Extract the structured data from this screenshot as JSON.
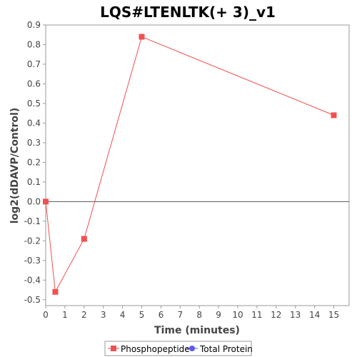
{
  "chart_data": {
    "type": "line",
    "title": "LQS#LTENLTK(+ 3)_v1",
    "xlabel": "Time (minutes)",
    "ylabel": "log2(dDAVP/Control)",
    "xlim": [
      0,
      15.8
    ],
    "ylim": [
      -0.53,
      0.9
    ],
    "xticks": [
      0,
      1,
      2,
      3,
      4,
      5,
      6,
      7,
      8,
      9,
      10,
      11,
      12,
      13,
      14,
      15
    ],
    "yticks": [
      0.9,
      0.8,
      0.7,
      0.6,
      0.5,
      0.4,
      0.3,
      0.2,
      0.1,
      0.0,
      -0.1,
      -0.2,
      -0.3,
      -0.4,
      -0.5
    ],
    "ytick_labels": [
      "0.9",
      "0.8",
      "0.7",
      "0.6",
      "0.5",
      "0.4",
      "0.3",
      "0.2",
      "0.1",
      "0.0",
      "-0.1",
      "-0.2",
      "-0.3",
      "-0.4",
      "-0.5"
    ],
    "zero_line": true,
    "grid": false,
    "legend_position": "bottom",
    "series": [
      {
        "name": "Phosphopeptide",
        "color": "#f05050",
        "marker": "square",
        "x": [
          0,
          0.5,
          2,
          5,
          15
        ],
        "y": [
          0.0,
          -0.46,
          -0.19,
          0.84,
          0.44
        ]
      },
      {
        "name": "Total Protein",
        "color": "#5a5af0",
        "marker": "circle",
        "x": [],
        "y": []
      }
    ]
  }
}
